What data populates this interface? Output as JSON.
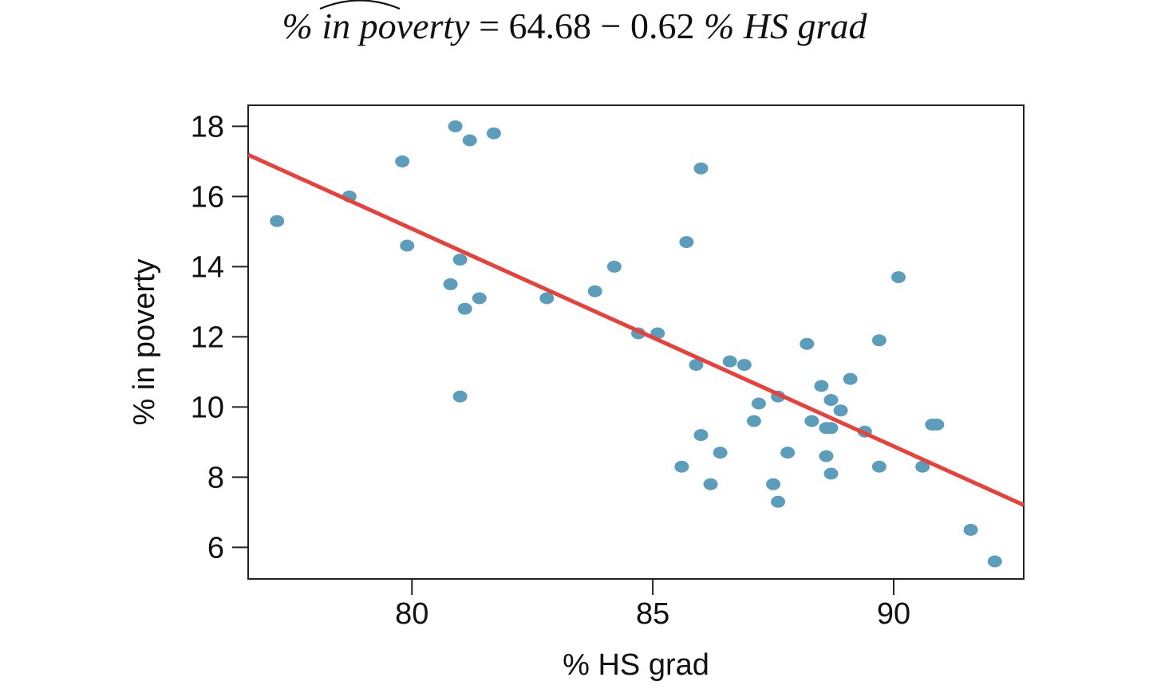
{
  "title": {
    "lhs_prefix": "% ",
    "lhs_hat": "in poverty",
    "equals": " = ",
    "rhs_number": "64.68 − 0.62 ",
    "rhs_var": "% HS grad"
  },
  "chart_data": {
    "type": "scatter",
    "title": "% in poverty = 64.68 − 0.62 % HS grad",
    "xlabel": "% HS grad",
    "ylabel": "% in poverty",
    "xlim": [
      76.6,
      92.7
    ],
    "ylim": [
      5.1,
      18.6
    ],
    "xticks": [
      80,
      85,
      90
    ],
    "yticks": [
      6,
      8,
      10,
      12,
      14,
      16,
      18
    ],
    "grid": false,
    "point_color": "#5b9dbb",
    "line_color": "#e8403a",
    "regression_line": {
      "intercept": 64.68,
      "slope": -0.62
    },
    "points": [
      {
        "x": 77.2,
        "y": 15.3
      },
      {
        "x": 78.7,
        "y": 16.0
      },
      {
        "x": 79.8,
        "y": 17.0
      },
      {
        "x": 79.9,
        "y": 14.6
      },
      {
        "x": 80.9,
        "y": 18.0
      },
      {
        "x": 81.2,
        "y": 17.6
      },
      {
        "x": 81.7,
        "y": 17.8
      },
      {
        "x": 81.0,
        "y": 14.2
      },
      {
        "x": 80.8,
        "y": 13.5
      },
      {
        "x": 81.1,
        "y": 12.8
      },
      {
        "x": 81.4,
        "y": 13.1
      },
      {
        "x": 81.0,
        "y": 10.3
      },
      {
        "x": 82.8,
        "y": 13.1
      },
      {
        "x": 83.8,
        "y": 13.3
      },
      {
        "x": 84.2,
        "y": 14.0
      },
      {
        "x": 84.7,
        "y": 12.1
      },
      {
        "x": 85.1,
        "y": 12.1
      },
      {
        "x": 85.7,
        "y": 14.7
      },
      {
        "x": 86.0,
        "y": 16.8
      },
      {
        "x": 85.9,
        "y": 11.2
      },
      {
        "x": 86.0,
        "y": 9.2
      },
      {
        "x": 85.6,
        "y": 8.3
      },
      {
        "x": 86.2,
        "y": 7.8
      },
      {
        "x": 86.4,
        "y": 8.7
      },
      {
        "x": 86.6,
        "y": 11.3
      },
      {
        "x": 86.9,
        "y": 11.2
      },
      {
        "x": 87.1,
        "y": 9.6
      },
      {
        "x": 87.2,
        "y": 10.1
      },
      {
        "x": 87.6,
        "y": 10.3
      },
      {
        "x": 87.5,
        "y": 7.8
      },
      {
        "x": 87.6,
        "y": 7.3
      },
      {
        "x": 87.8,
        "y": 8.7
      },
      {
        "x": 88.2,
        "y": 11.8
      },
      {
        "x": 88.3,
        "y": 9.6
      },
      {
        "x": 88.5,
        "y": 10.6
      },
      {
        "x": 88.6,
        "y": 9.4
      },
      {
        "x": 88.7,
        "y": 9.4
      },
      {
        "x": 88.7,
        "y": 10.2
      },
      {
        "x": 88.9,
        "y": 9.9
      },
      {
        "x": 88.6,
        "y": 8.6
      },
      {
        "x": 88.7,
        "y": 8.1
      },
      {
        "x": 89.1,
        "y": 10.8
      },
      {
        "x": 89.4,
        "y": 9.3
      },
      {
        "x": 89.7,
        "y": 11.9
      },
      {
        "x": 89.7,
        "y": 8.3
      },
      {
        "x": 90.1,
        "y": 13.7
      },
      {
        "x": 90.6,
        "y": 8.3
      },
      {
        "x": 90.8,
        "y": 9.5
      },
      {
        "x": 90.9,
        "y": 9.5
      },
      {
        "x": 91.6,
        "y": 6.5
      },
      {
        "x": 92.1,
        "y": 5.6
      }
    ]
  }
}
